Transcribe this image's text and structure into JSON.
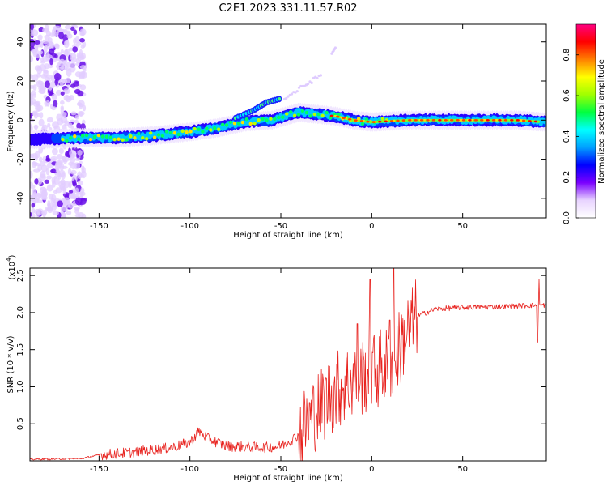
{
  "title": "C2E1.2023.331.11.57.R02",
  "chart_data": [
    {
      "type": "heatmap",
      "name": "spectrogram",
      "xlabel": "Height of straight line (km)",
      "ylabel": "Frequency (Hz)",
      "xlim": [
        -188,
        96
      ],
      "ylim": [
        -50,
        49
      ],
      "x_ticks": [
        -150,
        -100,
        -50,
        0,
        50
      ],
      "y_ticks": [
        -40,
        -20,
        0,
        20,
        40
      ],
      "colorbar": {
        "label": "Normalized spectral amplitude",
        "range": [
          0,
          0.95
        ],
        "ticks": [
          0.0,
          0.2,
          0.4,
          0.6,
          0.8
        ],
        "colors": [
          "#ffffff",
          "#e8d4ff",
          "#7a00ff",
          "#0000ff",
          "#00a0ff",
          "#00ffff",
          "#00ff40",
          "#a0ff00",
          "#ffff00",
          "#ff8000",
          "#ff0000",
          "#ff0080"
        ]
      },
      "ridge_hz": [
        {
          "x": -188,
          "f": -10
        },
        {
          "x": -160,
          "f": -9
        },
        {
          "x": -140,
          "f": -9
        },
        {
          "x": -120,
          "f": -8
        },
        {
          "x": -100,
          "f": -6
        },
        {
          "x": -85,
          "f": -4
        },
        {
          "x": -70,
          "f": -1
        },
        {
          "x": -55,
          "f": 0
        },
        {
          "x": -40,
          "f": 4
        },
        {
          "x": -30,
          "f": 3
        },
        {
          "x": -20,
          "f": 2
        },
        {
          "x": -10,
          "f": 0
        },
        {
          "x": 0,
          "f": -1
        },
        {
          "x": 20,
          "f": 0
        },
        {
          "x": 50,
          "f": 0
        },
        {
          "x": 80,
          "f": 0
        },
        {
          "x": 95,
          "f": -1
        }
      ],
      "secondary_ridge_hz": [
        {
          "x": -75,
          "f": 1
        },
        {
          "x": -65,
          "f": 5
        },
        {
          "x": -58,
          "f": 9
        },
        {
          "x": -50,
          "f": 11
        }
      ]
    },
    {
      "type": "line",
      "name": "snr",
      "xlabel": "Height of straight line (km)",
      "ylabel": "SNR (10 * v/v)",
      "y_multiplier": "(x10",
      "y_multiplier_exp": "4",
      "xlim": [
        -188,
        96
      ],
      "ylim": [
        0,
        2.6
      ],
      "x_ticks": [
        -150,
        -100,
        -50,
        0,
        50
      ],
      "y_ticks": [
        0.5,
        1.0,
        1.5,
        2.0,
        2.5
      ],
      "color": "#e8231f",
      "envelope": [
        {
          "x": -188,
          "v": 0.02
        },
        {
          "x": -160,
          "v": 0.03
        },
        {
          "x": -150,
          "v": 0.08
        },
        {
          "x": -130,
          "v": 0.12
        },
        {
          "x": -110,
          "v": 0.18
        },
        {
          "x": -100,
          "v": 0.25
        },
        {
          "x": -95,
          "v": 0.4
        },
        {
          "x": -90,
          "v": 0.3
        },
        {
          "x": -80,
          "v": 0.2
        },
        {
          "x": -60,
          "v": 0.18
        },
        {
          "x": -50,
          "v": 0.2
        },
        {
          "x": -40,
          "v": 0.35
        },
        {
          "x": -30,
          "v": 0.7
        },
        {
          "x": -20,
          "v": 0.95
        },
        {
          "x": -10,
          "v": 1.1
        },
        {
          "x": 0,
          "v": 1.2
        },
        {
          "x": 10,
          "v": 1.3
        },
        {
          "x": 15,
          "v": 1.5
        },
        {
          "x": 20,
          "v": 1.75
        },
        {
          "x": 25,
          "v": 1.95
        },
        {
          "x": 35,
          "v": 2.05
        },
        {
          "x": 50,
          "v": 2.07
        },
        {
          "x": 70,
          "v": 2.08
        },
        {
          "x": 90,
          "v": 2.1
        },
        {
          "x": 96,
          "v": 2.1
        }
      ],
      "spikes": [
        {
          "x": -1,
          "v": 2.45
        },
        {
          "x": 12,
          "v": 2.6
        },
        {
          "x": 10,
          "v": 1.9
        },
        {
          "x": 92,
          "v": 2.45
        },
        {
          "x": 91,
          "v": 1.6
        },
        {
          "x": -8,
          "v": 1.85
        }
      ]
    }
  ]
}
